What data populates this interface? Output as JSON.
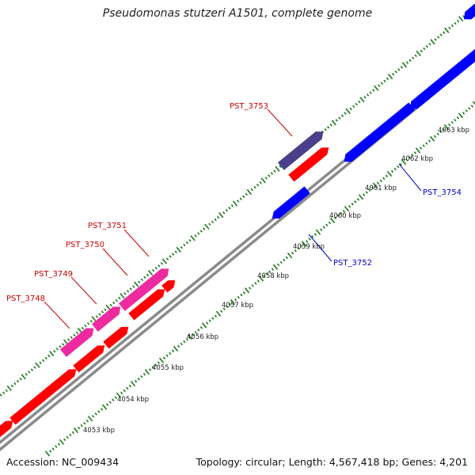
{
  "title": "Pseudomonas stutzeri A1501, complete genome",
  "accession": "Accession: NC_009434",
  "topology": "Topology: circular; Length: 4,567,418 bp; Genes: 4,201",
  "colors": {
    "forward_gene": "#ff0000",
    "reverse_gene": "#0000ff",
    "forward_label": "#cc0000",
    "reverse_label": "#0000cc",
    "highlight_gene": "#ee2aa0",
    "selected_gene": "#4a3f8a",
    "backbone": "#8a8a8a",
    "tick": "#1a7a1a"
  },
  "kbp_labels": [
    "4053 kbp",
    "4054 kbp",
    "4055 kbp",
    "4056 kbp",
    "4057 kbp",
    "4058 kbp",
    "4059 kbp",
    "4060 kbp",
    "4061 kbp",
    "4062 kbp",
    "4063 kbp"
  ],
  "gene_labels": [
    {
      "id": "PST_3748",
      "strand": "forward"
    },
    {
      "id": "PST_3749",
      "strand": "forward"
    },
    {
      "id": "PST_3750",
      "strand": "forward"
    },
    {
      "id": "PST_3751",
      "strand": "forward"
    },
    {
      "id": "PST_3753",
      "strand": "forward"
    },
    {
      "id": "PST_3752",
      "strand": "reverse"
    },
    {
      "id": "PST_3754",
      "strand": "reverse"
    }
  ]
}
